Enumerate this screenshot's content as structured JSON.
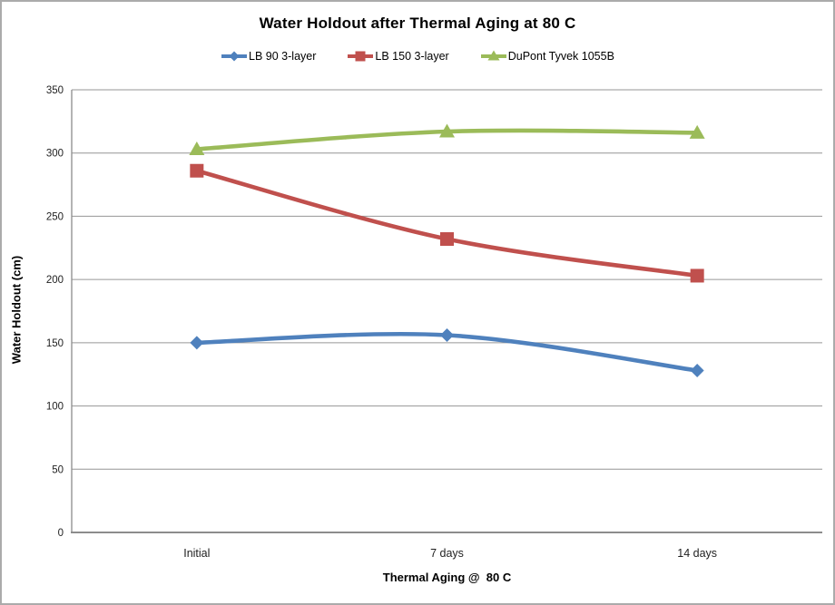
{
  "chart_data": {
    "type": "line",
    "title": "Water Holdout after Thermal Aging at 80 C",
    "xlabel": "Thermal Aging @  80 C",
    "ylabel": "Water Holdout (cm)",
    "categories": [
      "Initial",
      "7 days",
      "14 days"
    ],
    "series": [
      {
        "name": "LB 90 3-layer",
        "color": "#4F81BD",
        "marker": "diamond",
        "values": [
          150,
          156,
          128
        ]
      },
      {
        "name": "LB 150 3-layer",
        "color": "#C0504D",
        "marker": "square",
        "values": [
          286,
          232,
          203
        ]
      },
      {
        "name": "DuPont Tyvek 1055B",
        "color": "#9BBB59",
        "marker": "triangle",
        "values": [
          303,
          317,
          316
        ]
      }
    ],
    "ylim": [
      0,
      350
    ],
    "yticks": [
      0,
      50,
      100,
      150,
      200,
      250,
      300,
      350
    ],
    "grid": "horizontal",
    "legend_position": "top",
    "smoothed_lines": true,
    "gridline_color": "#969696",
    "axis_color": "#8c8c8c",
    "background_color": "#ffffff"
  }
}
